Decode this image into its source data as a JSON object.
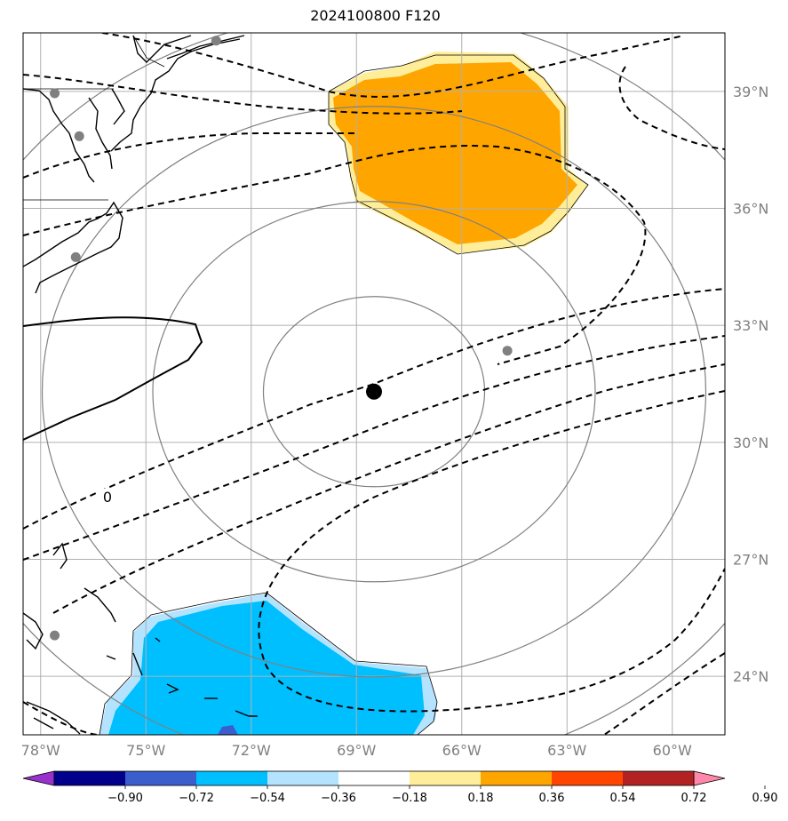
{
  "title": "2024100800 F120",
  "colors": {
    "graticule": "#b0b0b0",
    "range_rings": "#808080",
    "positive_fill": "#ffa500",
    "positive_fill_light": "#ffee99",
    "negative_fill": "#00bfff",
    "negative_fill_light": "#b3e3ff",
    "negative_fill_core": "#3a5fcd",
    "contours": "#000000",
    "station_dots": "#808080",
    "center_dot": "#000000"
  },
  "map": {
    "lon_range": [
      -78.5,
      -58.5
    ],
    "lat_range": [
      22.5,
      40.5
    ],
    "lon_ticks": [
      {
        "value": -78,
        "label": "78°W"
      },
      {
        "value": -75,
        "label": "75°W"
      },
      {
        "value": -72,
        "label": "72°W"
      },
      {
        "value": -69,
        "label": "69°W"
      },
      {
        "value": -66,
        "label": "66°W"
      },
      {
        "value": -63,
        "label": "63°W"
      },
      {
        "value": -60,
        "label": "60°W"
      }
    ],
    "lat_ticks": [
      {
        "value": 39,
        "label": "39°N"
      },
      {
        "value": 36,
        "label": "36°N"
      },
      {
        "value": 33,
        "label": "33°N"
      },
      {
        "value": 30,
        "label": "30°N"
      },
      {
        "value": 27,
        "label": "27°N"
      },
      {
        "value": 24,
        "label": "24°N"
      }
    ],
    "center": {
      "lon": -68.5,
      "lat": 31.3
    },
    "range_ring_steps": 4,
    "contour_label": "0",
    "stations": [
      {
        "lon": -77.6,
        "lat": 38.95
      },
      {
        "lon": -76.9,
        "lat": 37.85
      },
      {
        "lon": -77.0,
        "lat": 34.75
      },
      {
        "lon": -73.0,
        "lat": 40.3
      },
      {
        "lon": -64.7,
        "lat": 32.35
      },
      {
        "lon": -77.6,
        "lat": 25.05
      }
    ]
  },
  "colorbar": {
    "levels": [
      "−0.90",
      "−0.72",
      "−0.54",
      "−0.36",
      "−0.18",
      "0.18",
      "0.36",
      "0.54",
      "0.72",
      "0.90"
    ],
    "colors": [
      "#9932cc",
      "#00008b",
      "#3a5fcd",
      "#00bfff",
      "#b3e3ff",
      "#ffffff",
      "#ffee99",
      "#ffa500",
      "#ff4500",
      "#b22222",
      "#ff88aa"
    ]
  }
}
